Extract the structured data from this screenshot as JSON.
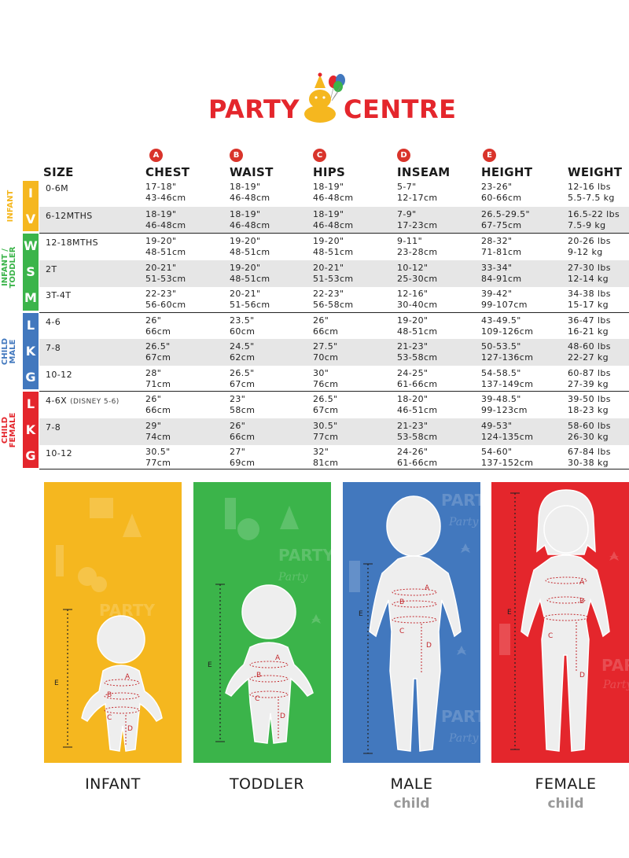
{
  "logo": {
    "left": "PARTY",
    "right": "CENTRE"
  },
  "columns": [
    {
      "key": "size",
      "label": "SIZE",
      "badge": ""
    },
    {
      "key": "chest",
      "label": "CHEST",
      "badge": "A"
    },
    {
      "key": "waist",
      "label": "WAIST",
      "badge": "B"
    },
    {
      "key": "hips",
      "label": "HIPS",
      "badge": "C"
    },
    {
      "key": "inseam",
      "label": "INSEAM",
      "badge": "D"
    },
    {
      "key": "height",
      "label": "HEIGHT",
      "badge": "E"
    },
    {
      "key": "weight",
      "label": "WEIGHT",
      "badge": ""
    }
  ],
  "groups": [
    {
      "label": "INFANT",
      "label2": "",
      "color": "#f5b71f"
    },
    {
      "label": "INFANT /",
      "label2": "TODDLER",
      "color": "#3bb44a"
    },
    {
      "label": "CHILD",
      "label2": "MALE",
      "color": "#4278be"
    },
    {
      "label": "CHILD",
      "label2": "FEMALE",
      "color": "#e4262c"
    }
  ],
  "rows": [
    {
      "letter": "I",
      "size": "0-6M",
      "note": "",
      "chest": [
        "17-18\"",
        "43-46cm"
      ],
      "waist": [
        "18-19\"",
        "46-48cm"
      ],
      "hips": [
        "18-19\"",
        "46-48cm"
      ],
      "inseam": [
        "5-7\"",
        "12-17cm"
      ],
      "height": [
        "23-26\"",
        "60-66cm"
      ],
      "weight": [
        "12-16 lbs",
        "5.5-7.5 kg"
      ]
    },
    {
      "letter": "V",
      "size": "6-12MTHS",
      "note": "",
      "chest": [
        "18-19\"",
        "46-48cm"
      ],
      "waist": [
        "18-19\"",
        "46-48cm"
      ],
      "hips": [
        "18-19\"",
        "46-48cm"
      ],
      "inseam": [
        "7-9\"",
        "17-23cm"
      ],
      "height": [
        "26.5-29.5\"",
        "67-75cm"
      ],
      "weight": [
        "16.5-22 lbs",
        "7.5-9 kg"
      ]
    },
    {
      "letter": "W",
      "size": "12-18MTHS",
      "note": "",
      "chest": [
        "19-20\"",
        "48-51cm"
      ],
      "waist": [
        "19-20\"",
        "48-51cm"
      ],
      "hips": [
        "19-20\"",
        "48-51cm"
      ],
      "inseam": [
        "9-11\"",
        "23-28cm"
      ],
      "height": [
        "28-32\"",
        "71-81cm"
      ],
      "weight": [
        "20-26 lbs",
        "9-12 kg"
      ]
    },
    {
      "letter": "S",
      "size": "2T",
      "note": "",
      "chest": [
        "20-21\"",
        "51-53cm"
      ],
      "waist": [
        "19-20\"",
        "48-51cm"
      ],
      "hips": [
        "20-21\"",
        "51-53cm"
      ],
      "inseam": [
        "10-12\"",
        "25-30cm"
      ],
      "height": [
        "33-34\"",
        "84-91cm"
      ],
      "weight": [
        "27-30 lbs",
        "12-14 kg"
      ]
    },
    {
      "letter": "M",
      "size": "3T-4T",
      "note": "",
      "chest": [
        "22-23\"",
        "56-60cm"
      ],
      "waist": [
        "20-21\"",
        "51-56cm"
      ],
      "hips": [
        "22-23\"",
        "56-58cm"
      ],
      "inseam": [
        "12-16\"",
        "30-40cm"
      ],
      "height": [
        "39-42\"",
        "99-107cm"
      ],
      "weight": [
        "34-38 lbs",
        "15-17 kg"
      ]
    },
    {
      "letter": "L",
      "size": "4-6",
      "note": "",
      "chest": [
        "26\"",
        "66cm"
      ],
      "waist": [
        "23.5\"",
        "60cm"
      ],
      "hips": [
        "26\"",
        "66cm"
      ],
      "inseam": [
        "19-20\"",
        "48-51cm"
      ],
      "height": [
        "43-49.5\"",
        "109-126cm"
      ],
      "weight": [
        "36-47 lbs",
        "16-21 kg"
      ]
    },
    {
      "letter": "K",
      "size": "7-8",
      "note": "",
      "chest": [
        "26.5\"",
        "67cm"
      ],
      "waist": [
        "24.5\"",
        "62cm"
      ],
      "hips": [
        "27.5\"",
        "70cm"
      ],
      "inseam": [
        "21-23\"",
        "53-58cm"
      ],
      "height": [
        "50-53.5\"",
        "127-136cm"
      ],
      "weight": [
        "48-60 lbs",
        "22-27 kg"
      ]
    },
    {
      "letter": "G",
      "size": "10-12",
      "note": "",
      "chest": [
        "28\"",
        "71cm"
      ],
      "waist": [
        "26.5\"",
        "67cm"
      ],
      "hips": [
        "30\"",
        "76cm"
      ],
      "inseam": [
        "24-25\"",
        "61-66cm"
      ],
      "height": [
        "54-58.5\"",
        "137-149cm"
      ],
      "weight": [
        "60-87 lbs",
        "27-39 kg"
      ]
    },
    {
      "letter": "L",
      "size": "4-6X",
      "note": "(DISNEY 5-6)",
      "chest": [
        "26\"",
        "66cm"
      ],
      "waist": [
        "23\"",
        "58cm"
      ],
      "hips": [
        "26.5\"",
        "67cm"
      ],
      "inseam": [
        "18-20\"",
        "46-51cm"
      ],
      "height": [
        "39-48.5\"",
        "99-123cm"
      ],
      "weight": [
        "39-50 lbs",
        "18-23 kg"
      ]
    },
    {
      "letter": "K",
      "size": "7-8",
      "note": "",
      "chest": [
        "29\"",
        "74cm"
      ],
      "waist": [
        "26\"",
        "66cm"
      ],
      "hips": [
        "30.5\"",
        "77cm"
      ],
      "inseam": [
        "21-23\"",
        "53-58cm"
      ],
      "height": [
        "49-53\"",
        "124-135cm"
      ],
      "weight": [
        "58-60 lbs",
        "26-30 kg"
      ]
    },
    {
      "letter": "G",
      "size": "10-12",
      "note": "",
      "chest": [
        "30.5\"",
        "77cm"
      ],
      "waist": [
        "27\"",
        "69cm"
      ],
      "hips": [
        "32\"",
        "81cm"
      ],
      "inseam": [
        "24-26\"",
        "61-66cm"
      ],
      "height": [
        "54-60\"",
        "137-152cm"
      ],
      "weight": [
        "67-84 lbs",
        "30-38 kg"
      ]
    }
  ],
  "panels": [
    {
      "label": "INFANT",
      "sub": "",
      "color": "#f5b71f"
    },
    {
      "label": "TODDLER",
      "sub": "",
      "color": "#3bb44a"
    },
    {
      "label": "MALE",
      "sub": "child",
      "color": "#4278be"
    },
    {
      "label": "FEMALE",
      "sub": "child",
      "color": "#e4262c"
    }
  ],
  "marker_labels": {
    "a": "A",
    "b": "B",
    "c": "C",
    "d": "D",
    "e": "E"
  },
  "panel_watermark": {
    "line1": "PARTY",
    "line2": "Party"
  }
}
